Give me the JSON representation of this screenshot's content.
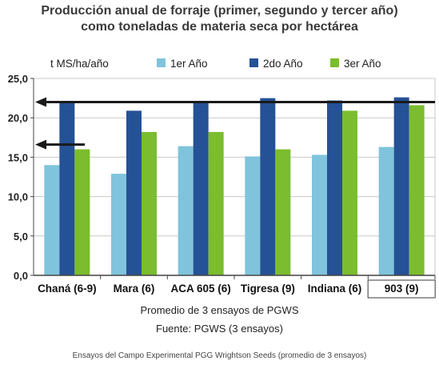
{
  "chart_data": {
    "type": "bar",
    "title": "Producción anual de forraje (primer,  segundo y tercer año)",
    "subtitle": "como toneladas de materia seca por hectárea",
    "ylabel": "t MS/ha/año",
    "categories": [
      "Chaná (6-9)",
      "Mara (6)",
      "ACA 605 (6)",
      "Tigresa (9)",
      "Indiana (6)",
      "903 (9)"
    ],
    "series": [
      {
        "name": "1er Año",
        "color": "#7fc4dc",
        "values": [
          14.0,
          12.9,
          16.4,
          15.1,
          15.3,
          16.3
        ]
      },
      {
        "name": "2do Año",
        "color": "#255196",
        "values": [
          21.9,
          20.9,
          21.9,
          22.5,
          22.2,
          22.6
        ]
      },
      {
        "name": "3er Año",
        "color": "#7bbd2e",
        "values": [
          16.0,
          18.2,
          18.2,
          16.0,
          20.9,
          21.6
        ]
      }
    ],
    "ylim": [
      0,
      25
    ],
    "yticks": [
      "0,0",
      "5,0",
      "10,0",
      "15,0",
      "20,0",
      "25,0"
    ],
    "reference_lines": [
      22.0,
      16.4
    ],
    "highlighted_category": "903 (9)",
    "grid": true
  },
  "notes": {
    "line1": "Promedio de 3 ensayos de PGWS",
    "line2": "Fuente: PGWS (3 ensayos)"
  },
  "footer": "Ensayos del Campo Experimental PGG Wrightson Seeds (promedio de 3 ensayos)"
}
